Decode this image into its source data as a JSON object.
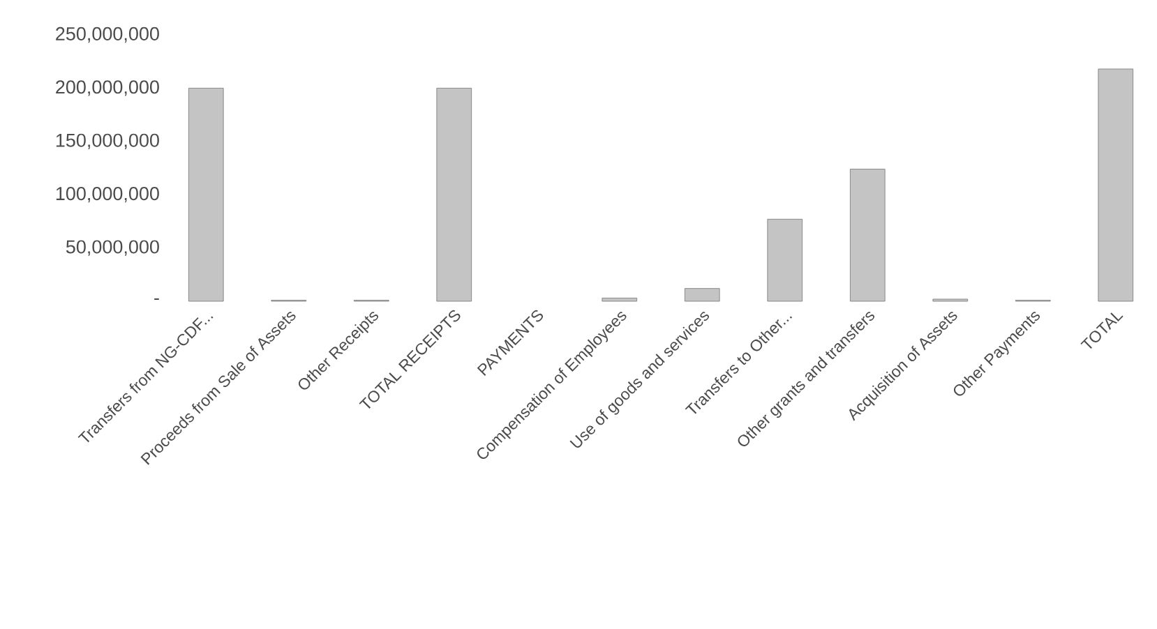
{
  "chart_data": {
    "type": "bar",
    "categories": [
      "Transfers from NG-CDF...",
      "Proceeds from Sale of Assets",
      "Other Receipts",
      "TOTAL RECEIPTS",
      "PAYMENTS",
      "Compensation of Employees",
      "Use of goods and services",
      "Transfers to Other...",
      "Other grants and transfers",
      "Acquisition of Assets",
      "Other Payments",
      "TOTAL"
    ],
    "values": [
      200000000,
      1000000,
      1000000,
      200000000,
      null,
      3000000,
      12000000,
      77000000,
      124000000,
      2000000,
      1000000,
      218000000
    ],
    "color": "#c4c4c4",
    "ylim": [
      0,
      250000000
    ],
    "yticks": [
      {
        "value": 0,
        "label": "-"
      },
      {
        "value": 50000000,
        "label": "50,000,000"
      },
      {
        "value": 100000000,
        "label": "100,000,000"
      },
      {
        "value": 150000000,
        "label": "150,000,000"
      },
      {
        "value": 200000000,
        "label": "200,000,000"
      },
      {
        "value": 250000000,
        "label": "250,000,000"
      }
    ]
  }
}
